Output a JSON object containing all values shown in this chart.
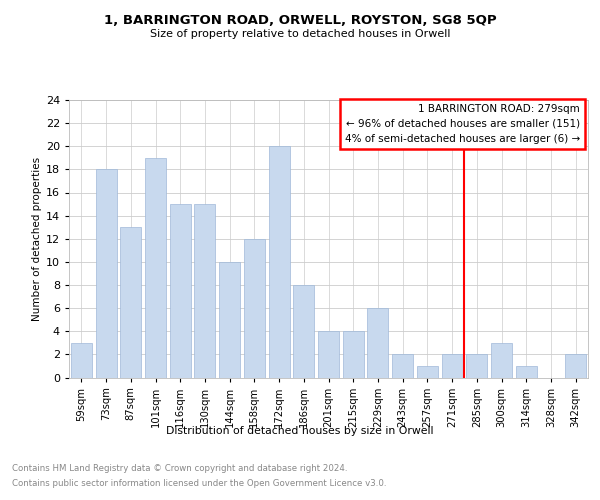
{
  "title": "1, BARRINGTON ROAD, ORWELL, ROYSTON, SG8 5QP",
  "subtitle": "Size of property relative to detached houses in Orwell",
  "xlabel": "Distribution of detached houses by size in Orwell",
  "ylabel": "Number of detached properties",
  "categories": [
    "59sqm",
    "73sqm",
    "87sqm",
    "101sqm",
    "116sqm",
    "130sqm",
    "144sqm",
    "158sqm",
    "172sqm",
    "186sqm",
    "201sqm",
    "215sqm",
    "229sqm",
    "243sqm",
    "257sqm",
    "271sqm",
    "285sqm",
    "300sqm",
    "314sqm",
    "328sqm",
    "342sqm"
  ],
  "values": [
    3,
    18,
    13,
    19,
    15,
    15,
    10,
    12,
    20,
    8,
    4,
    4,
    6,
    2,
    1,
    2,
    2,
    3,
    1,
    0,
    2
  ],
  "bar_color": "#c8d9ee",
  "bar_edge_color": "#a0b8d8",
  "annotation_line1": "1 BARRINGTON ROAD: 279sqm",
  "annotation_line2": "← 96% of detached houses are smaller (151)",
  "annotation_line3": "4% of semi-detached houses are larger (6) →",
  "annotation_box_color": "#cc0000",
  "ylim": [
    0,
    24
  ],
  "yticks": [
    0,
    2,
    4,
    6,
    8,
    10,
    12,
    14,
    16,
    18,
    20,
    22,
    24
  ],
  "footer_line1": "Contains HM Land Registry data © Crown copyright and database right 2024.",
  "footer_line2": "Contains public sector information licensed under the Open Government Licence v3.0.",
  "background_color": "#ffffff",
  "grid_color": "#cccccc",
  "line_x_index": 15.5
}
